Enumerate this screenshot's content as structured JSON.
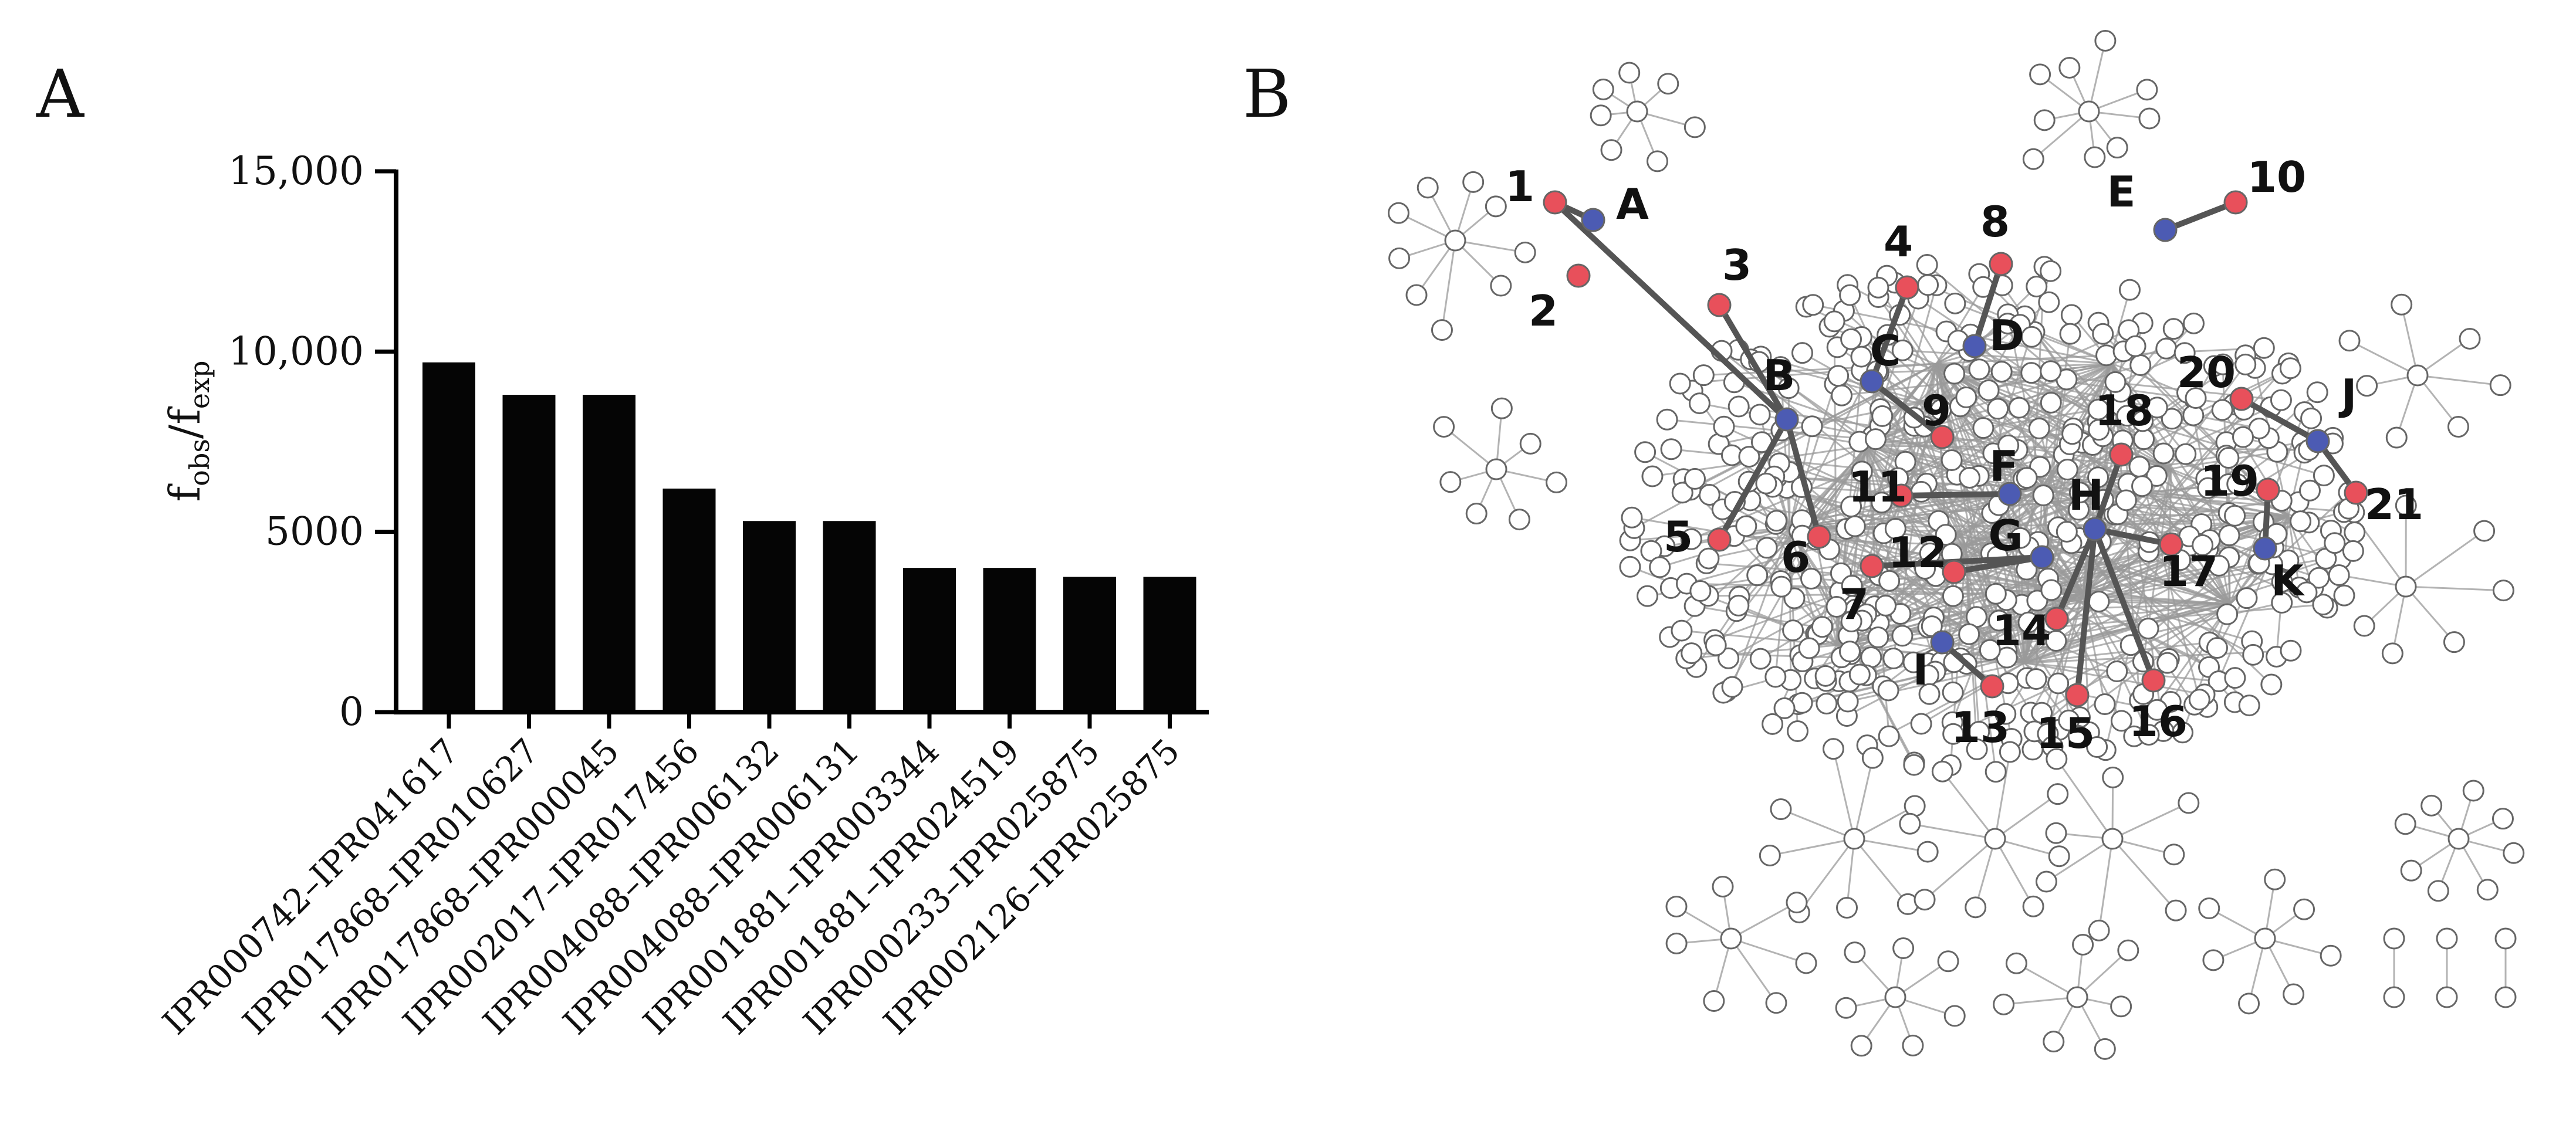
{
  "panels": {
    "a": "A",
    "b": "B"
  },
  "chart_data": {
    "type": "bar",
    "ylabel": {
      "main": "f",
      "sub1": "obs",
      "mid": "/f",
      "sub2": "exp"
    },
    "ylim": [
      0,
      15000
    ],
    "yticks": [
      {
        "value": 0,
        "label": "0"
      },
      {
        "value": 5000,
        "label": "5000"
      },
      {
        "value": 10000,
        "label": "10,000"
      },
      {
        "value": 15000,
        "label": "15,000"
      }
    ],
    "categories": [
      "IPR000742–IPR041617",
      "IPR017868–IPR010627",
      "IPR017868–IPR000045",
      "IPR002017–IPR017456",
      "IPR004088–IPR006132",
      "IPR004088–IPR006131",
      "IPR001881–IPR003344",
      "IPR001881–IPR024519",
      "IPR000233–IPR025875",
      "IPR002126–IPR025875"
    ],
    "values": [
      9700,
      8800,
      8800,
      6200,
      5300,
      5300,
      4000,
      4000,
      3750,
      3750
    ],
    "bar_color": "#050505"
  },
  "network": {
    "colors": {
      "red": "#e8505b",
      "blue": "#4c5bb3",
      "node": "#ffffff",
      "edge": "#9a9a9a",
      "highlight_edge": "#555555"
    },
    "red_labels": [
      "1",
      "2",
      "3",
      "4",
      "5",
      "6",
      "7",
      "8",
      "9",
      "10",
      "11",
      "12",
      "13",
      "14",
      "15",
      "16",
      "17",
      "18",
      "19",
      "20",
      "21"
    ],
    "blue_labels": [
      "A",
      "B",
      "C",
      "D",
      "E",
      "F",
      "G",
      "H",
      "I",
      "J",
      "K"
    ]
  }
}
